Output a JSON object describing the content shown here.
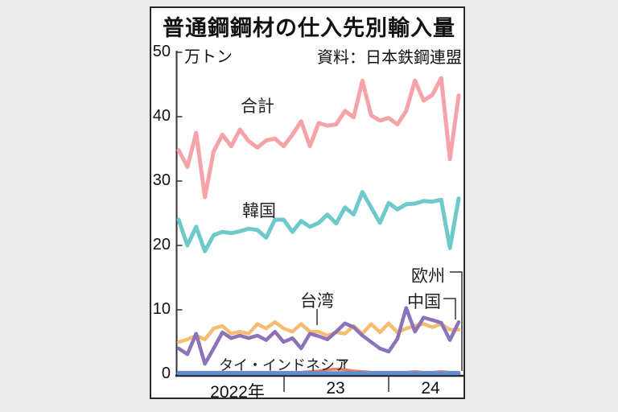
{
  "chart_data": {
    "type": "line",
    "title": "普通鋼鋼材の仕入先別輸入量",
    "source": "資料：日本鉄鋼連盟",
    "unit": "万トン",
    "ylim": [
      0,
      50
    ],
    "yticks": [
      50,
      40,
      30,
      20,
      10,
      0
    ],
    "x_axis_labels": [
      "2022年",
      "23",
      "24"
    ],
    "x_start": "2022-01",
    "x_end": "2024-09",
    "x_interval": "monthly",
    "grid": false,
    "legend_position": "inline-annotations",
    "series": [
      {
        "name": "合計",
        "color": "#f5a3a8",
        "width": 5,
        "values": [
          34.8,
          32.2,
          37.5,
          27.5,
          34.6,
          37.2,
          35.4,
          38.0,
          36.2,
          35.2,
          36.3,
          36.6,
          35.4,
          37.2,
          39.3,
          35.4,
          39.0,
          38.6,
          38.8,
          40.9,
          39.9,
          45.6,
          40.2,
          39.4,
          39.8,
          38.8,
          40.9,
          45.6,
          42.5,
          43.4,
          46.0,
          33.4,
          43.3
        ]
      },
      {
        "name": "韓国",
        "color": "#6ecaca",
        "width": 5,
        "values": [
          24.0,
          20.0,
          22.9,
          19.1,
          21.6,
          22.1,
          21.9,
          22.2,
          22.6,
          22.4,
          21.2,
          24.0,
          24.0,
          22.1,
          23.8,
          22.9,
          23.5,
          24.8,
          23.4,
          25.9,
          24.8,
          28.3,
          25.9,
          23.5,
          26.6,
          25.6,
          26.4,
          26.5,
          26.9,
          26.8,
          27.1,
          19.6,
          27.3
        ]
      },
      {
        "name": "台湾",
        "color": "#f6bd72",
        "width": 4.5,
        "values": [
          5.0,
          5.4,
          6.0,
          5.4,
          7.1,
          7.5,
          6.3,
          6.6,
          6.3,
          7.8,
          7.1,
          8.1,
          7.1,
          6.6,
          7.8,
          6.6,
          6.6,
          6.0,
          6.5,
          6.3,
          7.5,
          6.3,
          7.8,
          6.5,
          7.9,
          6.5,
          7.1,
          7.5,
          7.8,
          7.3,
          7.8,
          6.9,
          6.9
        ]
      },
      {
        "name": "中国",
        "color": "#8b72b9",
        "width": 4.5,
        "values": [
          4.0,
          3.1,
          6.3,
          1.6,
          4.0,
          6.5,
          5.6,
          6.0,
          5.6,
          6.0,
          5.3,
          6.6,
          5.0,
          5.6,
          4.0,
          6.3,
          5.9,
          5.4,
          6.6,
          7.9,
          7.3,
          6.0,
          5.0,
          4.0,
          3.5,
          5.5,
          10.3,
          6.6,
          8.8,
          8.4,
          8.0,
          5.3,
          8.1
        ]
      },
      {
        "name": "タイ・インドネシア",
        "color": "#ed7a5e",
        "width": 3.5,
        "values": [
          0.3,
          0.3,
          0.3,
          0.3,
          0.3,
          0.3,
          0.3,
          0.3,
          0.3,
          0.3,
          0.3,
          0.3,
          0.3,
          0.3,
          0.3,
          0.4,
          0.5,
          0.7,
          0.8,
          0.7,
          0.5,
          0.4,
          0.3,
          0.3,
          0.3,
          0.3,
          0.3,
          0.4,
          0.3,
          0.3,
          0.4,
          0.3,
          0.3
        ]
      },
      {
        "name": "欧州",
        "color": "#5b8ed2",
        "width": 5,
        "values": [
          0.15,
          0.15,
          0.15,
          0.15,
          0.15,
          0.15,
          0.15,
          0.15,
          0.15,
          0.15,
          0.15,
          0.15,
          0.15,
          0.15,
          0.15,
          0.15,
          0.15,
          0.15,
          0.15,
          0.15,
          0.15,
          0.15,
          0.15,
          0.15,
          0.15,
          0.15,
          0.15,
          0.15,
          0.15,
          0.15,
          0.15,
          0.15,
          0.15
        ]
      }
    ]
  }
}
